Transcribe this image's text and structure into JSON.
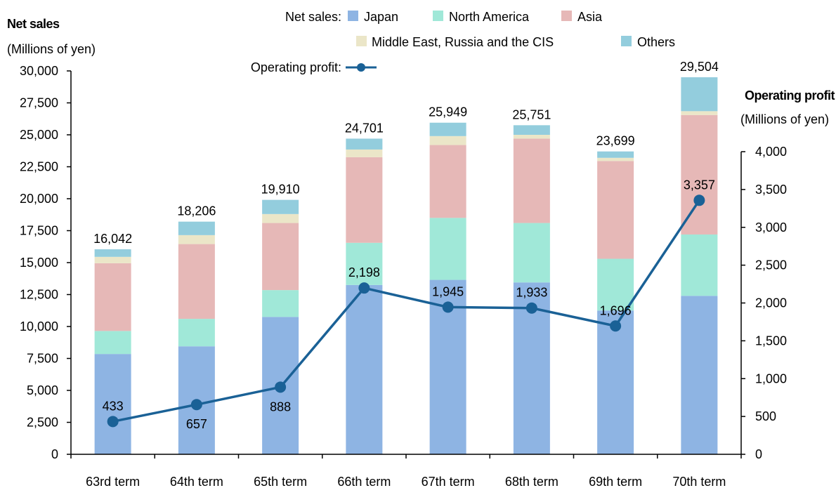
{
  "chart_data": {
    "type": "bar",
    "stacked": true,
    "categories": [
      "63rd term",
      "64th term",
      "65th term",
      "66th term",
      "67th term",
      "68th term",
      "69th term",
      "70th term"
    ],
    "left_axis": {
      "title": "Net sales",
      "unit": "(Millions of yen)",
      "range": [
        0,
        30000
      ],
      "ticks": [
        "0",
        "2,500",
        "5,000",
        "7,500",
        "10,000",
        "12,500",
        "15,000",
        "17,500",
        "20,000",
        "22,500",
        "25,000",
        "27,500",
        "30,000"
      ]
    },
    "right_axis": {
      "title": "Operating profit",
      "unit": "(Millions of yen)",
      "range": [
        0,
        4000
      ],
      "ticks": [
        "0",
        "500",
        "1,000",
        "1,500",
        "2,000",
        "2,500",
        "3,000",
        "3,500",
        "4,000"
      ]
    },
    "legend": {
      "net_sales_label": "Net sales:",
      "operating_profit_label": "Operating profit:",
      "placement": "top"
    },
    "series": [
      {
        "name": "Japan",
        "color": "#8eb4e3",
        "values": [
          7850,
          8450,
          10750,
          13250,
          13650,
          13450,
          11250,
          12400
        ]
      },
      {
        "name": "North America",
        "color": "#a0e8d8",
        "values": [
          1800,
          2150,
          2100,
          3300,
          4850,
          4650,
          4050,
          4800
        ]
      },
      {
        "name": "Asia",
        "color": "#e6b8b7",
        "values": [
          5300,
          5850,
          5250,
          6700,
          5700,
          6600,
          7650,
          9350
        ]
      },
      {
        "name": "Middle East,  Russia and the CIS",
        "color": "#ebe6c8",
        "values": [
          500,
          700,
          700,
          600,
          700,
          300,
          250,
          300
        ]
      },
      {
        "name": "Others",
        "color": "#93cddd",
        "values": [
          592,
          1056,
          1110,
          851,
          1049,
          751,
          499,
          2654
        ]
      }
    ],
    "totals": [
      "16,042",
      "18,206",
      "19,910",
      "24,701",
      "25,949",
      "25,751",
      "23,699",
      "29,504"
    ],
    "total_values": [
      16042,
      18206,
      19910,
      24701,
      25949,
      25751,
      23699,
      29504
    ],
    "line": {
      "name": "Operating profit",
      "color": "#1a6196",
      "values": [
        433,
        657,
        888,
        2198,
        1945,
        1933,
        1696,
        3357
      ],
      "labels": [
        "433",
        "657",
        "888",
        "2,198",
        "1,945",
        "1,933",
        "1,696",
        "3,357"
      ]
    }
  }
}
